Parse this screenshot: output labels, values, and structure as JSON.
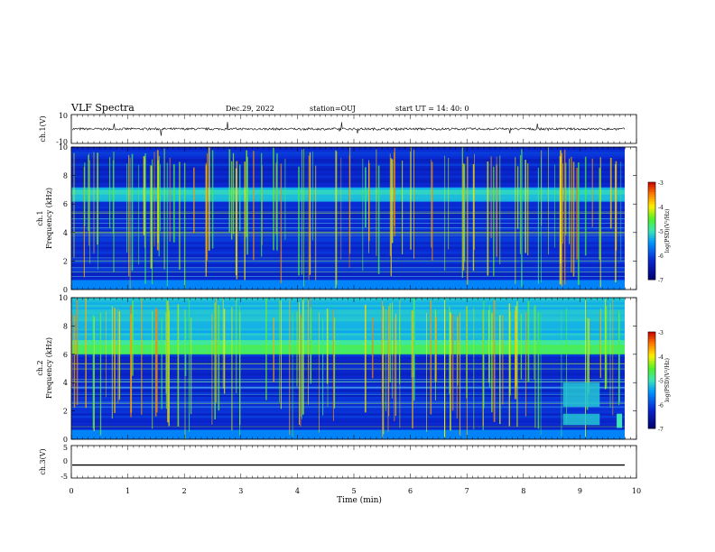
{
  "header": {
    "title": "VLF Spectra",
    "date": "Dec.29, 2022",
    "station": "station=OUJ",
    "start": "start  UT =   14: 40: 0"
  },
  "chart_data": [
    {
      "type": "line",
      "name": "waveform-ch1",
      "ylabel": "ch.1(V)",
      "ylim": [
        -10,
        10
      ],
      "yticks": [
        "10",
        "-10"
      ],
      "mean_value": 0,
      "series": [
        {
          "name": "ch.1",
          "description": "noisy waveform near 0 V with sparse spikes"
        }
      ]
    },
    {
      "type": "heatmap",
      "name": "spectrogram-ch1",
      "ylabel": "ch.1\nFrequency (kHz)",
      "ylabel_lines": [
        "ch.1",
        "Frequency (kHz)"
      ],
      "ylim": [
        0,
        10
      ],
      "yticks": [
        "0",
        "2",
        "4",
        "6",
        "8",
        "10"
      ],
      "colorbar": {
        "label": "log(PSD)(V²/Hz)",
        "range": [
          -7,
          -3
        ],
        "ticks": [
          "-3",
          "-4",
          "-5",
          "-6",
          "-7"
        ]
      },
      "bands_khz": [
        {
          "low": 6.2,
          "high": 7.2,
          "level": -5.2
        }
      ]
    },
    {
      "type": "heatmap",
      "name": "spectrogram-ch2",
      "ylabel": "ch.2\nFrequency (kHz)",
      "ylabel_lines": [
        "ch.2",
        "Frequency (kHz)"
      ],
      "ylim": [
        0,
        10
      ],
      "yticks": [
        "0",
        "2",
        "4",
        "6",
        "8",
        "10"
      ],
      "colorbar": {
        "label": "log(PSD)(V²/Hz)",
        "range": [
          -7,
          -3
        ],
        "ticks": [
          "-3",
          "-4",
          "-5",
          "-6",
          "-7"
        ]
      },
      "bands_khz": [
        {
          "low": 6.0,
          "high": 7.0,
          "level": -4.8
        },
        {
          "low": 7.0,
          "high": 10.0,
          "level": -5.3
        }
      ]
    },
    {
      "type": "line",
      "name": "waveform-ch3",
      "ylabel": "ch.3(V)",
      "ylim": [
        -5,
        5
      ],
      "yticks": [
        "5",
        "0",
        "-5"
      ],
      "mean_value": -1,
      "series": [
        {
          "name": "ch.3",
          "description": "flat line"
        }
      ]
    }
  ],
  "xaxis": {
    "label": "Time (min)",
    "xlim": [
      0,
      10
    ],
    "ticks": [
      "0",
      "1",
      "2",
      "3",
      "4",
      "5",
      "6",
      "7",
      "8",
      "9",
      "10"
    ]
  },
  "colors": {
    "noise_floor": "#0a1a9a",
    "emission_band": "#22c8e8",
    "line_spikes": "#c8e840",
    "strong": "#e83020"
  }
}
